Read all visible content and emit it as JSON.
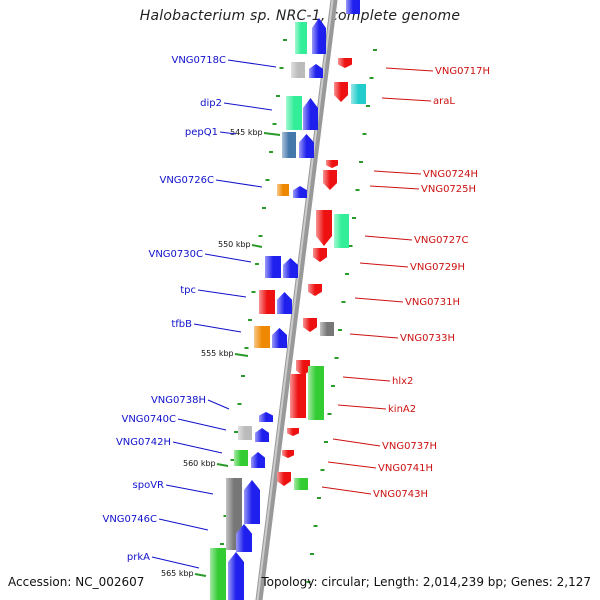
{
  "title": "Halobacterium sp. NRC-1, complete genome",
  "footer": {
    "accession": "Accession: NC_002607",
    "topology": "Topology: circular; Length: 2,014,239 bp; Genes: 2,127"
  },
  "colors": {
    "blue": "#1f1fee",
    "red": "#ee1111",
    "green": "#33cc33",
    "lightgreen": "#33ee99",
    "cyan": "#22cccc",
    "gray": "#777777",
    "silver": "#bbbbbb",
    "orange": "#ee8800",
    "steelblue": "#4477aa",
    "label_blue": "#1111cc",
    "label_red": "#cc1111"
  },
  "scale_labels": [
    "545 kbp",
    "550 kbp",
    "555 kbp",
    "560 kbp",
    "565 kbp"
  ],
  "left_genes": [
    "VNG0718C",
    "dip2",
    "pepQ1",
    "VNG0726C",
    "VNG0730C",
    "tpc",
    "tfbB",
    "VNG0738H",
    "VNG0740C",
    "VNG0742H",
    "spoVR",
    "VNG0746C",
    "prkA"
  ],
  "right_genes": [
    "VNG0717H",
    "araL",
    "VNG0724H",
    "VNG0725H",
    "VNG0727C",
    "VNG0729H",
    "VNG0731H",
    "VNG0733H",
    "hlx2",
    "kinA2",
    "VNG0737H",
    "VNG0741H",
    "VNG0743H"
  ]
}
